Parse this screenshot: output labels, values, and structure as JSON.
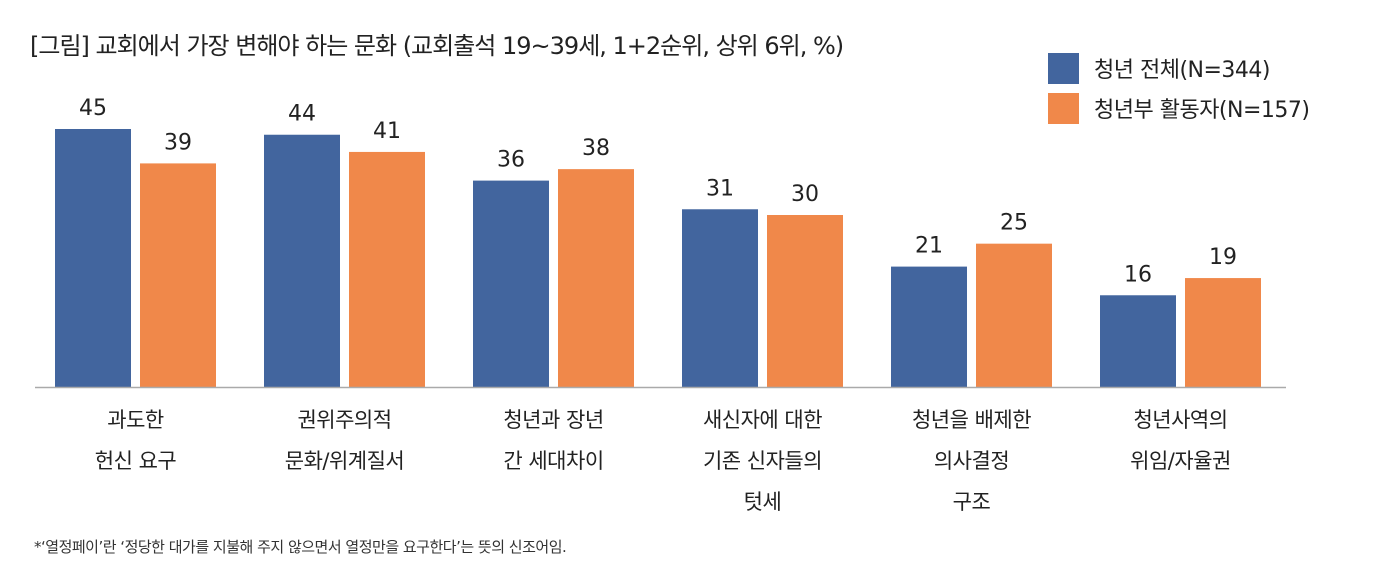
{
  "chart_data": {
    "type": "bar",
    "title": "[그림] 교회에서 가장 변해야 하는 문화 (교회출석 19~39세, 1+2순위, 상위 6위, %)",
    "categories": [
      [
        "과도한",
        "헌신 요구"
      ],
      [
        "권위주의적",
        "문화/위계질서"
      ],
      [
        "청년과 장년",
        "간 세대차이"
      ],
      [
        "새신자에 대한",
        "기존 신자들의",
        "텃세"
      ],
      [
        "청년을 배제한",
        "의사결정",
        "구조"
      ],
      [
        "청년사역의",
        "위임/자율권"
      ]
    ],
    "series": [
      {
        "name": "청년 전체(N=344)",
        "color": "#42659e",
        "values": [
          45,
          44,
          36,
          31,
          21,
          16
        ]
      },
      {
        "name": "청년부 활동자(N=157)",
        "color": "#f0884a",
        "values": [
          39,
          41,
          38,
          30,
          25,
          19
        ]
      }
    ],
    "xlabel": "",
    "ylabel": "",
    "ylim": [
      0,
      50
    ],
    "grid": false,
    "legend": "top-right",
    "footnote": "*‘열정페이’란 ‘정당한 대가를 지불해 주지 않으면서 열정만을 요구한다’는 뜻의 신조어임."
  }
}
